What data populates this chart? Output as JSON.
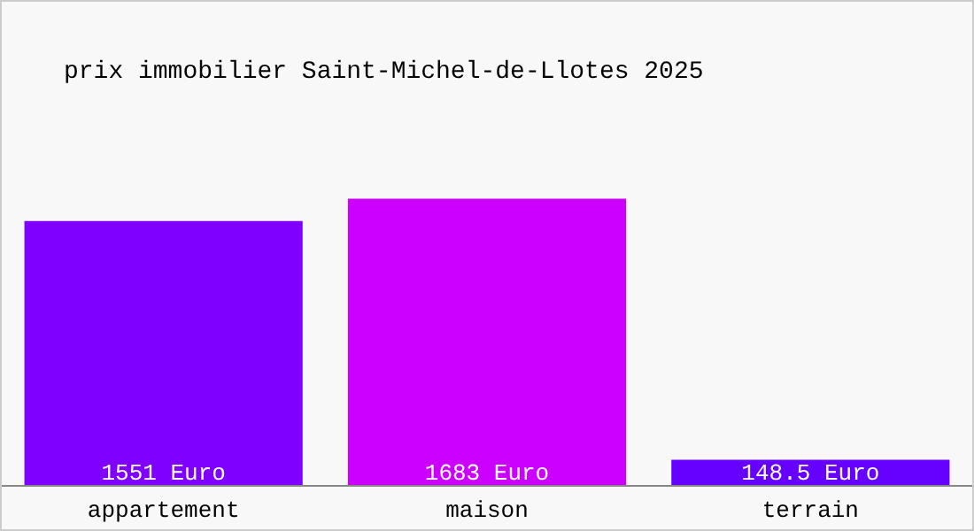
{
  "chart_data": {
    "type": "bar",
    "title": "prix immobilier Saint-Michel-de-Llotes 2025",
    "categories": [
      "appartement",
      "maison",
      "terrain"
    ],
    "values": [
      1551,
      1683,
      148.5
    ],
    "colors": [
      "#8000ff",
      "#cc00ff",
      "#6600ff"
    ],
    "value_labels": [
      "1551 Euro",
      "1683 Euro",
      "148.5 Euro"
    ]
  }
}
